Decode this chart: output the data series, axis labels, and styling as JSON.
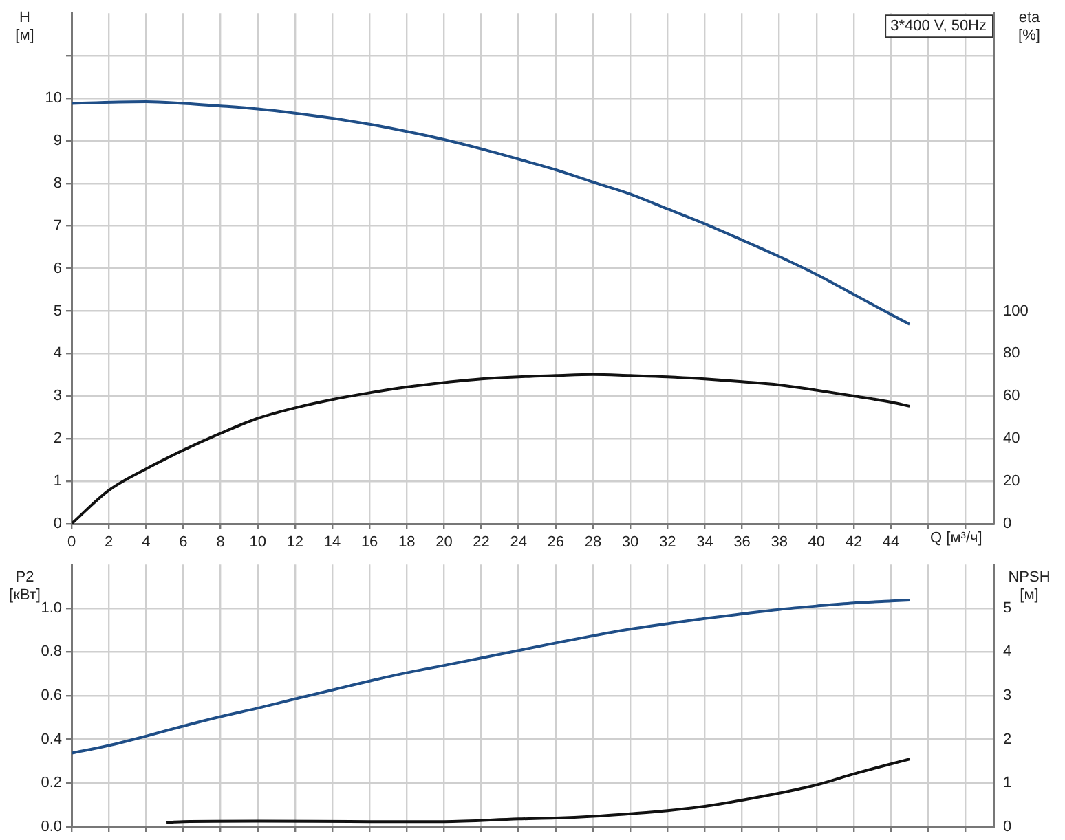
{
  "chart_data": [
    {
      "type": "line",
      "ylabel": "H [м]",
      "y2label": "eta [%]",
      "xlabel": "Q [м³/ч]",
      "annotations": [
        "3*400 V, 50Hz"
      ],
      "xlim": [
        0,
        49.5
      ],
      "xticks": [
        0,
        2,
        4,
        6,
        8,
        10,
        12,
        14,
        16,
        18,
        20,
        22,
        24,
        26,
        28,
        30,
        32,
        34,
        36,
        38,
        40,
        42,
        44,
        {
          "value": 46,
          "label": null
        },
        {
          "value": 48,
          "label": null
        }
      ],
      "ylim": [
        0,
        12
      ],
      "yticks": [
        0,
        1,
        2,
        3,
        4,
        5,
        6,
        7,
        8,
        9,
        10,
        {
          "value": 11,
          "label": null
        }
      ],
      "y2lim": [
        0,
        240
      ],
      "y2ticks": [
        0,
        20,
        40,
        60,
        80,
        100
      ],
      "grid": true,
      "legend": false,
      "marker": "none",
      "line_style": "solid",
      "series": [
        {
          "color": "#1f4e87",
          "axis": "y",
          "x": [
            0,
            4,
            6,
            8,
            10,
            12,
            14,
            16,
            18,
            20,
            22,
            24,
            26,
            28,
            30,
            32,
            34,
            36,
            38,
            40,
            42,
            44,
            45
          ],
          "values": [
            9.88,
            9.92,
            9.88,
            9.82,
            9.75,
            9.65,
            9.53,
            9.39,
            9.22,
            9.03,
            8.81,
            8.57,
            8.32,
            8.03,
            7.75,
            7.4,
            7.05,
            6.67,
            6.28,
            5.86,
            5.39,
            4.92,
            4.69
          ]
        },
        {
          "color": "#111111",
          "axis": "y2",
          "x": [
            0,
            2,
            4,
            6,
            8,
            10,
            12,
            14,
            16,
            18,
            20,
            22,
            24,
            26,
            28,
            30,
            32,
            34,
            36,
            38,
            40,
            42,
            44,
            45
          ],
          "values": [
            0,
            15.7,
            25.8,
            34.6,
            42.5,
            49.6,
            54.5,
            58.4,
            61.6,
            64.3,
            66.4,
            68.1,
            69.1,
            69.7,
            70.2,
            69.7,
            69.1,
            68.1,
            66.8,
            65.3,
            62.8,
            60.1,
            57.2,
            55.3
          ]
        }
      ]
    },
    {
      "type": "line",
      "ylabel": "P2 [кВт]",
      "y2label": "NPSH [м]",
      "xlim": [
        0,
        49.5
      ],
      "xticks": [
        0,
        2,
        4,
        6,
        8,
        10,
        12,
        14,
        16,
        18,
        20,
        22,
        24,
        26,
        28,
        30,
        32,
        34,
        36,
        38,
        40,
        42,
        44,
        46,
        48
      ],
      "ylim": [
        0,
        1.2
      ],
      "yticks": [
        {
          "value": 0,
          "label": "0.0"
        },
        0.2,
        0.4,
        0.6,
        0.8,
        {
          "value": 1,
          "label": "1.0"
        }
      ],
      "y2lim": [
        0,
        6
      ],
      "y2ticks": [
        0,
        1,
        2,
        3,
        4,
        5
      ],
      "tick_labels": "y",
      "grid": true,
      "legend": false,
      "marker": "none",
      "line_style": "solid",
      "series": [
        {
          "color": "#1f4e87",
          "axis": "y",
          "x": [
            0,
            2,
            4,
            6,
            8,
            10,
            12,
            14,
            16,
            18,
            20,
            22,
            24,
            26,
            28,
            30,
            32,
            34,
            36,
            38,
            40,
            42,
            44,
            45
          ],
          "values": [
            0.337,
            0.372,
            0.415,
            0.461,
            0.504,
            0.543,
            0.585,
            0.626,
            0.667,
            0.705,
            0.738,
            0.772,
            0.807,
            0.841,
            0.874,
            0.904,
            0.929,
            0.953,
            0.974,
            0.994,
            1.01,
            1.024,
            1.033,
            1.037
          ]
        },
        {
          "color": "#111111",
          "axis": "y2",
          "x": [
            5.1,
            6,
            10,
            16,
            20,
            24,
            26,
            28,
            30,
            32,
            34,
            36,
            38,
            40,
            42,
            44,
            45
          ],
          "values": [
            0.1,
            0.12,
            0.13,
            0.12,
            0.12,
            0.18,
            0.2,
            0.24,
            0.3,
            0.37,
            0.47,
            0.61,
            0.77,
            0.96,
            1.21,
            1.44,
            1.55
          ]
        }
      ]
    }
  ]
}
